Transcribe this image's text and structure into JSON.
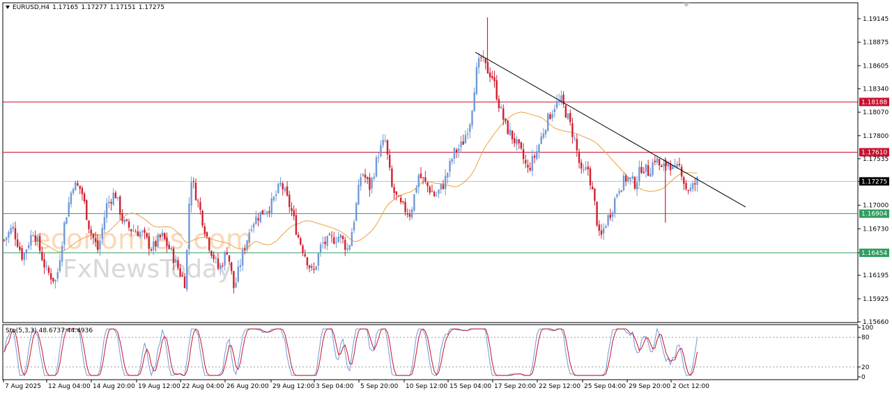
{
  "header": {
    "symbol": "EURUSD,H4",
    "open": "1.17165",
    "high": "1.17277",
    "low": "1.17151",
    "close": "1.17275"
  },
  "stochastic": {
    "label": "Sto(5,3,3)",
    "main": "48.6737",
    "signal": "44.4936"
  },
  "watermark": {
    "line1": "economies.com",
    "line2": "FxNewsToday"
  },
  "colors": {
    "bull": "#6f99d6",
    "bear": "#d11f2e",
    "resistance": "#c8102e",
    "support": "#2e9e5f",
    "current": "#bfbfbf",
    "ma": "#e8a33d",
    "trendline": "#000000",
    "sto_main": "#6f99d6",
    "sto_signal": "#c8102e"
  },
  "chart_data": [
    {
      "type": "candlestick",
      "symbol": "EURUSD",
      "timeframe": "H4",
      "ylim": [
        1.1566,
        1.1932
      ],
      "y_ticks": [
        "1.19145",
        "1.18875",
        "1.18605",
        "1.18340",
        "1.18070",
        "1.17800",
        "1.17535",
        "1.17275",
        "1.17000",
        "1.16730",
        "1.16454",
        "1.16195",
        "1.15925",
        "1.15660"
      ],
      "x_ticks": [
        "7 Aug 2025",
        "12 Aug 04:00",
        "14 Aug 20:00",
        "19 Aug 12:00",
        "22 Aug 04:00",
        "26 Aug 20:00",
        "29 Aug 12:00",
        "3 Sep 04:00",
        "5 Sep 20:00",
        "10 Sep 12:00",
        "15 Sep 04:00",
        "17 Sep 20:00",
        "22 Sep 12:00",
        "25 Sep 04:00",
        "29 Sep 20:00",
        "2 Oct 12:00"
      ],
      "levels": [
        {
          "label": "1.18188",
          "value": 1.18188,
          "kind": "resistance"
        },
        {
          "label": "1.17610",
          "value": 1.1761,
          "kind": "resistance"
        },
        {
          "label": "1.17275",
          "value": 1.17275,
          "kind": "current"
        },
        {
          "label": "1.16904",
          "value": 1.16904,
          "kind": "support"
        },
        {
          "label": "1.16454",
          "value": 1.16454,
          "kind": "support"
        }
      ],
      "trendline": [
        [
          1.1876,
          0
        ],
        [
          1.1698,
          1
        ]
      ],
      "close_path": [
        [
          0.0,
          1.166
        ],
        [
          0.01,
          1.1675
        ],
        [
          0.022,
          1.164
        ],
        [
          0.035,
          1.1672
        ],
        [
          0.05,
          1.1625
        ],
        [
          0.062,
          1.1612
        ],
        [
          0.072,
          1.168
        ],
        [
          0.082,
          1.1725
        ],
        [
          0.092,
          1.1718
        ],
        [
          0.102,
          1.1672
        ],
        [
          0.112,
          1.1648
        ],
        [
          0.122,
          1.17
        ],
        [
          0.132,
          1.1715
        ],
        [
          0.142,
          1.168
        ],
        [
          0.152,
          1.1672
        ],
        [
          0.164,
          1.1668
        ],
        [
          0.176,
          1.165
        ],
        [
          0.188,
          1.1665
        ],
        [
          0.198,
          1.1648
        ],
        [
          0.21,
          1.1622
        ],
        [
          0.216,
          1.161
        ],
        [
          0.222,
          1.1735
        ],
        [
          0.232,
          1.17
        ],
        [
          0.244,
          1.1655
        ],
        [
          0.256,
          1.1625
        ],
        [
          0.266,
          1.165
        ],
        [
          0.274,
          1.1603
        ],
        [
          0.283,
          1.164
        ],
        [
          0.295,
          1.168
        ],
        [
          0.305,
          1.169
        ],
        [
          0.318,
          1.17
        ],
        [
          0.33,
          1.1725
        ],
        [
          0.342,
          1.1695
        ],
        [
          0.35,
          1.1665
        ],
        [
          0.36,
          1.164
        ],
        [
          0.368,
          1.162
        ],
        [
          0.378,
          1.1655
        ],
        [
          0.39,
          1.166
        ],
        [
          0.4,
          1.1665
        ],
        [
          0.41,
          1.1648
        ],
        [
          0.418,
          1.169
        ],
        [
          0.426,
          1.174
        ],
        [
          0.436,
          1.172
        ],
        [
          0.446,
          1.176
        ],
        [
          0.454,
          1.1775
        ],
        [
          0.462,
          1.172
        ],
        [
          0.472,
          1.17
        ],
        [
          0.484,
          1.169
        ],
        [
          0.494,
          1.1735
        ],
        [
          0.506,
          1.172
        ],
        [
          0.514,
          1.171
        ],
        [
          0.524,
          1.1725
        ],
        [
          0.536,
          1.176
        ],
        [
          0.546,
          1.177
        ],
        [
          0.556,
          1.18
        ],
        [
          0.562,
          1.185
        ],
        [
          0.568,
          1.187
        ],
        [
          0.574,
          1.1858
        ],
        [
          0.582,
          1.1848
        ],
        [
          0.59,
          1.1815
        ],
        [
          0.598,
          1.179
        ],
        [
          0.608,
          1.1775
        ],
        [
          0.616,
          1.176
        ],
        [
          0.624,
          1.174
        ],
        [
          0.634,
          1.176
        ],
        [
          0.646,
          1.1795
        ],
        [
          0.656,
          1.1815
        ],
        [
          0.664,
          1.182
        ],
        [
          0.672,
          1.18
        ],
        [
          0.68,
          1.1775
        ],
        [
          0.688,
          1.1735
        ],
        [
          0.696,
          1.1742
        ],
        [
          0.704,
          1.17
        ],
        [
          0.71,
          1.1658
        ],
        [
          0.716,
          1.1678
        ],
        [
          0.724,
          1.1695
        ],
        [
          0.732,
          1.172
        ],
        [
          0.742,
          1.1732
        ],
        [
          0.752,
          1.1725
        ],
        [
          0.76,
          1.1745
        ],
        [
          0.768,
          1.1738
        ],
        [
          0.776,
          1.1755
        ],
        [
          0.784,
          1.174
        ],
        [
          0.792,
          1.1752
        ],
        [
          0.798,
          1.1738
        ],
        [
          0.806,
          1.1745
        ],
        [
          0.812,
          1.172
        ],
        [
          0.818,
          1.1718
        ],
        [
          0.826,
          1.1728
        ]
      ]
    },
    {
      "type": "line",
      "name": "Sto(5,3,3)",
      "ylim": [
        0,
        100
      ],
      "y_ticks": [
        "100",
        "80",
        "20",
        "0"
      ],
      "levels": [
        80,
        20
      ],
      "series": [
        {
          "name": "main",
          "last": 48.6737
        },
        {
          "name": "signal",
          "last": 44.4936
        }
      ]
    }
  ]
}
